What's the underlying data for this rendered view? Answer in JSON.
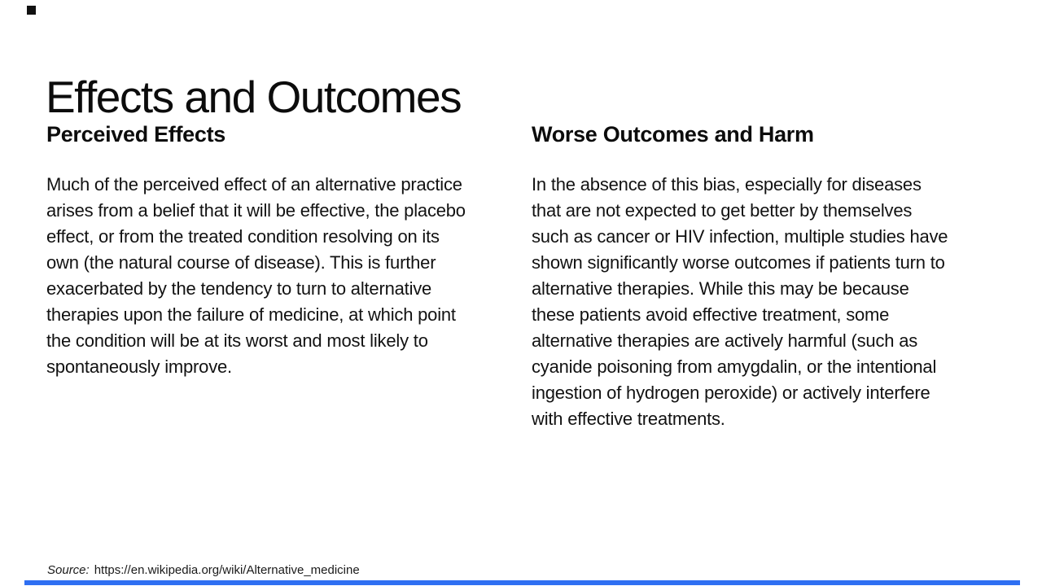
{
  "slide": {
    "title": "Effects and Outcomes",
    "columns": [
      {
        "heading": "Perceived Effects",
        "body": "Much of the perceived effect of an alternative practice arises from a belief that it will be effective, the placebo effect, or from the treated condition resolving on its own (the natural course of disease). This is further exacerbated by the tendency to turn to alternative therapies upon the failure of medicine, at which point the condition will be at its worst and most likely to spontaneously improve."
      },
      {
        "heading": "Worse Outcomes and Harm",
        "body": "In the absence of this bias, especially for diseases that are not expected to get better by themselves such as cancer or HIV infection, multiple studies have shown significantly worse outcomes if patients turn to alternative therapies. While this may be because these patients avoid effective treatment, some alternative therapies are actively harmful (such as cyanide poisoning from amygdalin, or the intentional ingestion of hydrogen peroxide) or actively interfere with effective treatments."
      }
    ],
    "source": {
      "label": "Source:",
      "url": "https://en.wikipedia.org/wiki/Alternative_medicine"
    }
  },
  "theme": {
    "background_color": "#ffffff",
    "text_color": "#111111",
    "accent_bar_color": "#2e6ff2",
    "logo_color": "#111111"
  }
}
